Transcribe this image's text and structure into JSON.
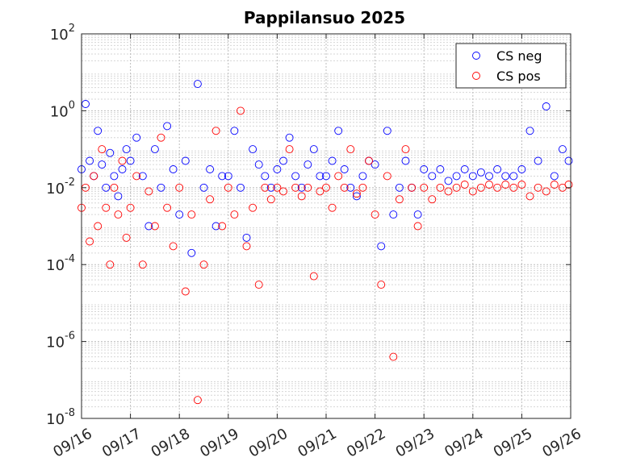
{
  "chart_data": {
    "type": "scatter",
    "title": "Pappilansuo 2025",
    "xlabel": "",
    "ylabel": "",
    "x_axis": {
      "type": "date",
      "range": [
        "2025-09-16",
        "2025-09-26"
      ],
      "tick_labels": [
        "09/16",
        "09/17",
        "09/18",
        "09/19",
        "09/20",
        "09/21",
        "09/22",
        "09/23",
        "09/24",
        "09/25",
        "09/26"
      ]
    },
    "y_axis": {
      "scale": "log",
      "ylim": [
        1e-08,
        100
      ],
      "tick_values": [
        1e-08,
        1e-06,
        0.0001,
        0.01,
        1,
        100
      ],
      "tick_labels": [
        {
          "base": "10",
          "exp": "-8"
        },
        {
          "base": "10",
          "exp": "-6"
        },
        {
          "base": "10",
          "exp": "-4"
        },
        {
          "base": "10",
          "exp": "-2"
        },
        {
          "base": "10",
          "exp": "0"
        },
        {
          "base": "10",
          "exp": "2"
        }
      ]
    },
    "grid": "major and minor, dotted",
    "legend_position": "top-right",
    "series": [
      {
        "name": "CS neg",
        "color": "#0000ff",
        "marker": "open-circle",
        "x": [
          "2025-09-16 00:00",
          "2025-09-16 02:00",
          "2025-09-16 04:00",
          "2025-09-16 06:00",
          "2025-09-16 08:00",
          "2025-09-16 10:00",
          "2025-09-16 12:00",
          "2025-09-16 14:00",
          "2025-09-16 16:00",
          "2025-09-16 18:00",
          "2025-09-16 20:00",
          "2025-09-16 22:00",
          "2025-09-17 00:00",
          "2025-09-17 03:00",
          "2025-09-17 06:00",
          "2025-09-17 09:00",
          "2025-09-17 12:00",
          "2025-09-17 15:00",
          "2025-09-17 18:00",
          "2025-09-17 21:00",
          "2025-09-18 00:00",
          "2025-09-18 03:00",
          "2025-09-18 06:00",
          "2025-09-18 09:00",
          "2025-09-18 12:00",
          "2025-09-18 15:00",
          "2025-09-18 18:00",
          "2025-09-18 21:00",
          "2025-09-19 00:00",
          "2025-09-19 03:00",
          "2025-09-19 06:00",
          "2025-09-19 09:00",
          "2025-09-19 12:00",
          "2025-09-19 15:00",
          "2025-09-19 18:00",
          "2025-09-19 21:00",
          "2025-09-20 00:00",
          "2025-09-20 03:00",
          "2025-09-20 06:00",
          "2025-09-20 09:00",
          "2025-09-20 12:00",
          "2025-09-20 15:00",
          "2025-09-20 18:00",
          "2025-09-20 21:00",
          "2025-09-21 00:00",
          "2025-09-21 03:00",
          "2025-09-21 06:00",
          "2025-09-21 09:00",
          "2025-09-21 12:00",
          "2025-09-21 15:00",
          "2025-09-21 18:00",
          "2025-09-21 21:00",
          "2025-09-22 00:00",
          "2025-09-22 03:00",
          "2025-09-22 06:00",
          "2025-09-22 09:00",
          "2025-09-22 12:00",
          "2025-09-22 15:00",
          "2025-09-22 18:00",
          "2025-09-22 21:00",
          "2025-09-23 00:00",
          "2025-09-23 04:00",
          "2025-09-23 08:00",
          "2025-09-23 12:00",
          "2025-09-23 16:00",
          "2025-09-23 20:00",
          "2025-09-24 00:00",
          "2025-09-24 04:00",
          "2025-09-24 08:00",
          "2025-09-24 12:00",
          "2025-09-24 16:00",
          "2025-09-24 20:00",
          "2025-09-25 00:00",
          "2025-09-25 04:00",
          "2025-09-25 08:00",
          "2025-09-25 12:00",
          "2025-09-25 16:00",
          "2025-09-25 20:00",
          "2025-09-25 23:00"
        ],
        "y": [
          0.03,
          1.5,
          0.05,
          0.02,
          0.3,
          0.04,
          0.01,
          0.08,
          0.02,
          0.006,
          0.03,
          0.1,
          0.05,
          0.2,
          0.02,
          0.001,
          0.1,
          0.01,
          0.4,
          0.03,
          0.002,
          0.05,
          0.0002,
          5,
          0.01,
          0.03,
          0.001,
          0.02,
          0.02,
          0.3,
          0.01,
          0.0005,
          0.1,
          0.04,
          0.02,
          0.01,
          0.03,
          0.05,
          0.2,
          0.02,
          0.01,
          0.04,
          0.1,
          0.02,
          0.02,
          0.05,
          0.3,
          0.03,
          0.01,
          0.006,
          0.02,
          0.05,
          0.04,
          0.0003,
          0.3,
          0.002,
          0.01,
          0.05,
          0.01,
          0.002,
          0.03,
          0.02,
          0.03,
          0.015,
          0.02,
          0.03,
          0.02,
          0.025,
          0.02,
          0.03,
          0.02,
          0.02,
          0.03,
          0.3,
          0.05,
          1.3,
          0.02,
          0.1,
          0.05
        ]
      },
      {
        "name": "CS pos",
        "color": "#ff0000",
        "marker": "open-circle",
        "x": [
          "2025-09-16 00:00",
          "2025-09-16 02:00",
          "2025-09-16 04:00",
          "2025-09-16 06:00",
          "2025-09-16 08:00",
          "2025-09-16 10:00",
          "2025-09-16 12:00",
          "2025-09-16 14:00",
          "2025-09-16 16:00",
          "2025-09-16 18:00",
          "2025-09-16 20:00",
          "2025-09-16 22:00",
          "2025-09-17 00:00",
          "2025-09-17 03:00",
          "2025-09-17 06:00",
          "2025-09-17 09:00",
          "2025-09-17 12:00",
          "2025-09-17 15:00",
          "2025-09-17 18:00",
          "2025-09-17 21:00",
          "2025-09-18 00:00",
          "2025-09-18 03:00",
          "2025-09-18 06:00",
          "2025-09-18 09:00",
          "2025-09-18 12:00",
          "2025-09-18 15:00",
          "2025-09-18 18:00",
          "2025-09-18 21:00",
          "2025-09-19 00:00",
          "2025-09-19 03:00",
          "2025-09-19 06:00",
          "2025-09-19 09:00",
          "2025-09-19 12:00",
          "2025-09-19 15:00",
          "2025-09-19 18:00",
          "2025-09-19 21:00",
          "2025-09-20 00:00",
          "2025-09-20 03:00",
          "2025-09-20 06:00",
          "2025-09-20 09:00",
          "2025-09-20 12:00",
          "2025-09-20 15:00",
          "2025-09-20 18:00",
          "2025-09-20 21:00",
          "2025-09-21 00:00",
          "2025-09-21 03:00",
          "2025-09-21 06:00",
          "2025-09-21 09:00",
          "2025-09-21 12:00",
          "2025-09-21 15:00",
          "2025-09-21 18:00",
          "2025-09-21 21:00",
          "2025-09-22 00:00",
          "2025-09-22 03:00",
          "2025-09-22 06:00",
          "2025-09-22 09:00",
          "2025-09-22 12:00",
          "2025-09-22 15:00",
          "2025-09-22 18:00",
          "2025-09-22 21:00",
          "2025-09-23 00:00",
          "2025-09-23 04:00",
          "2025-09-23 08:00",
          "2025-09-23 12:00",
          "2025-09-23 16:00",
          "2025-09-23 20:00",
          "2025-09-24 00:00",
          "2025-09-24 04:00",
          "2025-09-24 08:00",
          "2025-09-24 12:00",
          "2025-09-24 16:00",
          "2025-09-24 20:00",
          "2025-09-25 00:00",
          "2025-09-25 04:00",
          "2025-09-25 08:00",
          "2025-09-25 12:00",
          "2025-09-25 16:00",
          "2025-09-25 20:00",
          "2025-09-25 23:00"
        ],
        "y": [
          0.003,
          0.01,
          0.0004,
          0.02,
          0.001,
          0.1,
          0.003,
          0.0001,
          0.01,
          0.002,
          0.05,
          0.0005,
          0.003,
          0.02,
          0.0001,
          0.008,
          0.001,
          0.2,
          0.003,
          0.0003,
          0.01,
          2e-05,
          0.002,
          3e-08,
          0.0001,
          0.005,
          0.3,
          0.001,
          0.01,
          0.002,
          1,
          0.0003,
          0.003,
          3e-05,
          0.01,
          0.005,
          0.01,
          0.008,
          0.1,
          0.01,
          0.006,
          0.01,
          5e-05,
          0.008,
          0.01,
          0.003,
          0.02,
          0.01,
          0.1,
          0.007,
          0.01,
          0.05,
          0.002,
          3e-05,
          0.02,
          4e-07,
          0.005,
          0.1,
          0.01,
          0.001,
          0.01,
          0.005,
          0.01,
          0.008,
          0.01,
          0.012,
          0.008,
          0.01,
          0.012,
          0.01,
          0.012,
          0.01,
          0.012,
          0.006,
          0.01,
          0.008,
          0.012,
          0.01,
          0.012
        ]
      }
    ]
  }
}
